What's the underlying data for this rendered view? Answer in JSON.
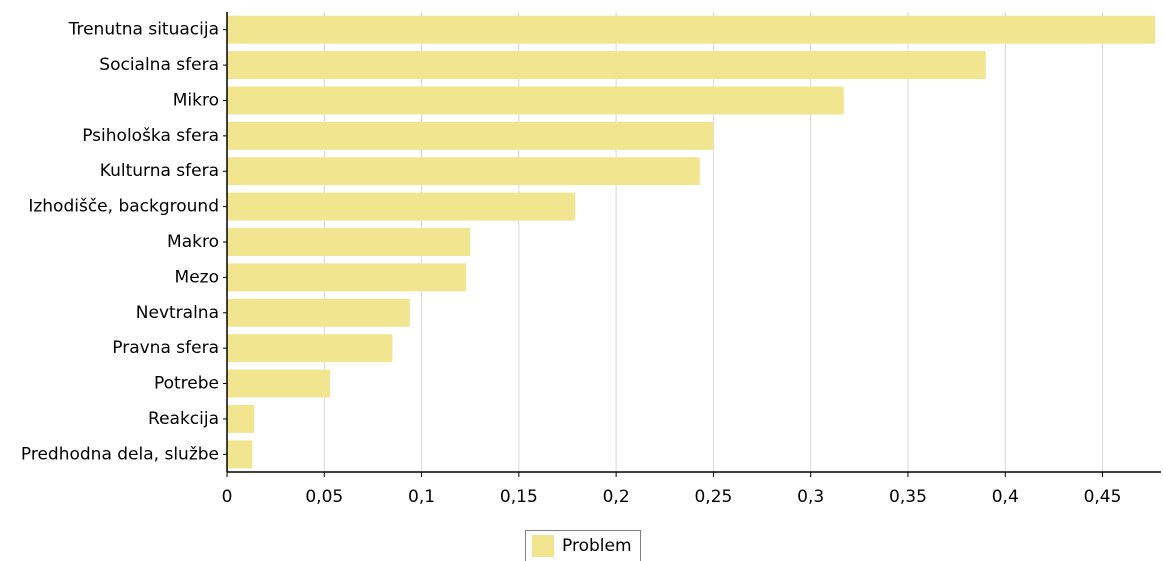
{
  "chart_data": {
    "type": "bar",
    "orientation": "horizontal",
    "categories": [
      "Trenutna situacija",
      "Socialna sfera",
      "Mikro",
      "Psihološka sfera",
      "Kulturna sfera",
      "Izhodišče, background",
      "Makro",
      "Mezo",
      "Nevtralna",
      "Pravna sfera",
      "Potrebe",
      "Reakcija",
      "Predhodna dela, službe"
    ],
    "series": [
      {
        "name": "Problem",
        "color": "#f1e68f",
        "values": [
          0.477,
          0.39,
          0.317,
          0.25,
          0.243,
          0.179,
          0.125,
          0.123,
          0.094,
          0.085,
          0.053,
          0.014,
          0.013
        ]
      }
    ],
    "xlim": [
      0,
      0.478
    ],
    "xticks": [
      0,
      0.05,
      0.1,
      0.15,
      0.2,
      0.25,
      0.3,
      0.35,
      0.4,
      0.45
    ],
    "xtick_labels": [
      "0",
      "0,05",
      "0,1",
      "0,15",
      "0,2",
      "0,25",
      "0,3",
      "0,35",
      "0,4",
      "0,45"
    ],
    "grid": "vertical",
    "legend_position": "bottom-center",
    "title": "",
    "xlabel": "",
    "ylabel": ""
  }
}
